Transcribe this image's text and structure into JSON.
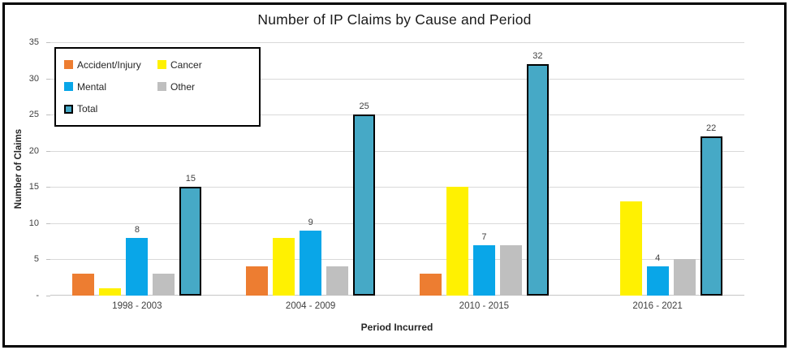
{
  "chart_data": {
    "type": "bar",
    "title": "Number of IP Claims by Cause and Period",
    "xlabel": "Period Incurred",
    "ylabel": "Number of Claims",
    "categories": [
      "1998 - 2003",
      "2004 - 2009",
      "2010 - 2015",
      "2016 - 2021"
    ],
    "series": [
      {
        "name": "Accident/Injury",
        "color": "#ED7D31",
        "values": [
          3,
          4,
          3,
          0
        ],
        "labeled": false
      },
      {
        "name": "Cancer",
        "color": "#FFF101",
        "values": [
          1,
          8,
          15,
          13
        ],
        "labeled": false
      },
      {
        "name": "Mental",
        "color": "#09A6E8",
        "values": [
          8,
          9,
          7,
          4
        ],
        "labeled": true
      },
      {
        "name": "Other",
        "color": "#BFBFBF",
        "values": [
          3,
          4,
          7,
          5
        ],
        "labeled": false
      },
      {
        "name": "Total",
        "color": "#46A9C6",
        "border": "#000000",
        "values": [
          15,
          25,
          32,
          22
        ],
        "labeled": true
      }
    ],
    "data_labels_shown": {
      "Mental": [
        8,
        9,
        7,
        4
      ],
      "Total": [
        15,
        25,
        32,
        22
      ]
    },
    "ylim": [
      0,
      35
    ],
    "ytick_step": 5,
    "ytick_labels": [
      "-",
      "5",
      "10",
      "15",
      "20",
      "25",
      "30",
      "35"
    ],
    "grid": true,
    "gridline_color": "#D9D9D9",
    "legend_position": "top-left",
    "legend_rows": [
      [
        "Accident/Injury",
        "Cancer"
      ],
      [
        "Mental",
        "Other"
      ],
      [
        "Total"
      ]
    ]
  }
}
